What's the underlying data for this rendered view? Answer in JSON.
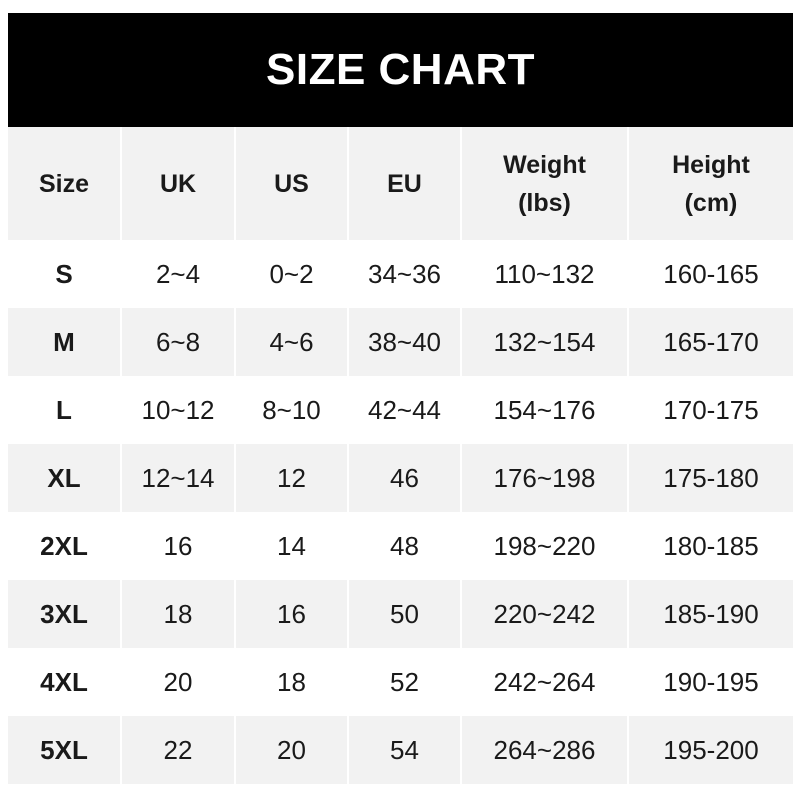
{
  "title": "SIZE CHART",
  "columns": [
    "Size",
    "UK",
    "US",
    "EU",
    "Weight\n(lbs)",
    "Height\n(cm)"
  ],
  "rows": [
    [
      "S",
      "2~4",
      "0~2",
      "34~36",
      "110~132",
      "160-165"
    ],
    [
      "M",
      "6~8",
      "4~6",
      "38~40",
      "132~154",
      "165-170"
    ],
    [
      "L",
      "10~12",
      "8~10",
      "42~44",
      "154~176",
      "170-175"
    ],
    [
      "XL",
      "12~14",
      "12",
      "46",
      "176~198",
      "175-180"
    ],
    [
      "2XL",
      "16",
      "14",
      "48",
      "198~220",
      "180-185"
    ],
    [
      "3XL",
      "18",
      "16",
      "50",
      "220~242",
      "185-190"
    ],
    [
      "4XL",
      "20",
      "18",
      "52",
      "242~264",
      "190-195"
    ],
    [
      "5XL",
      "22",
      "20",
      "54",
      "264~286",
      "195-200"
    ]
  ],
  "colors": {
    "header_bg": "#000000",
    "header_text": "#ffffff",
    "stripe": "#f2f2f2"
  }
}
